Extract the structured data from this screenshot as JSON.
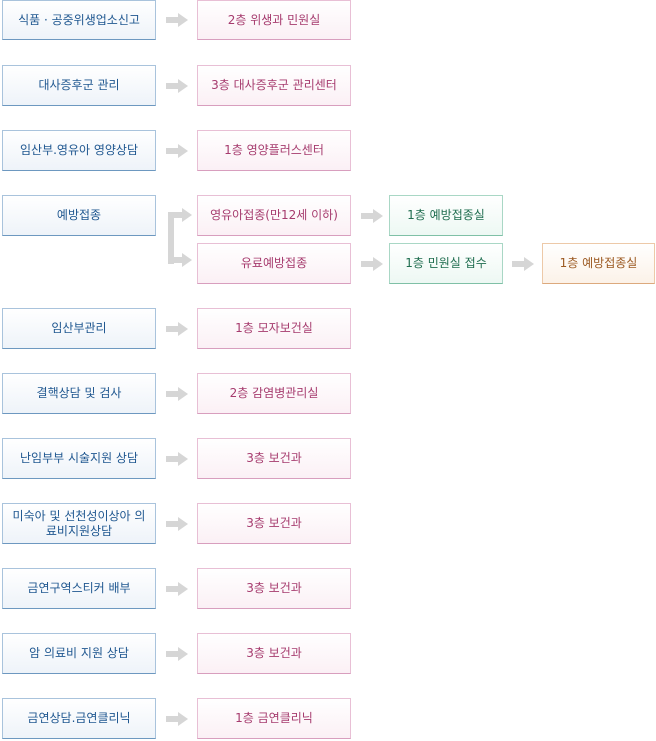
{
  "rows": [
    {
      "service": "식품 · 공중위생업소신고",
      "location": "2층 위생과 민원실"
    },
    {
      "service": "대사증후군 관리",
      "location": "3층 대사증후군 관리센터"
    },
    {
      "service": "임산부.영유아 영양상담",
      "location": "1층 영양플러스센터"
    },
    {
      "service": "예방접종",
      "branches": [
        {
          "label": "영유아접종(만12세 이하)",
          "steps": [
            "1층 예방접종실"
          ]
        },
        {
          "label": "유료예방접종",
          "steps": [
            "1층 민원실 접수",
            "1층 예방접종실"
          ]
        }
      ]
    },
    {
      "service": "임산부관리",
      "location": "1층 모자보건실"
    },
    {
      "service": "결핵상담 및 검사",
      "location": "2층 감염병관리실"
    },
    {
      "service": "난임부부 시술지원 상담",
      "location": "3층 보건과"
    },
    {
      "service": "미숙아 및 선천성이상아 의료비지원상담",
      "location": "3층 보건과"
    },
    {
      "service": "금연구역스티커 배부",
      "location": "3층 보건과"
    },
    {
      "service": "암 의료비 지원 상담",
      "location": "3층 보건과"
    },
    {
      "service": "금연상담.금연클리닉",
      "location": "1층 금연클리닉"
    }
  ],
  "colors": {
    "service_text": "#1f5790",
    "location_text": "#a63b6e",
    "green_text": "#1f6d4f",
    "orange_text": "#9c5a22",
    "arrow": "#d6d6d6"
  }
}
